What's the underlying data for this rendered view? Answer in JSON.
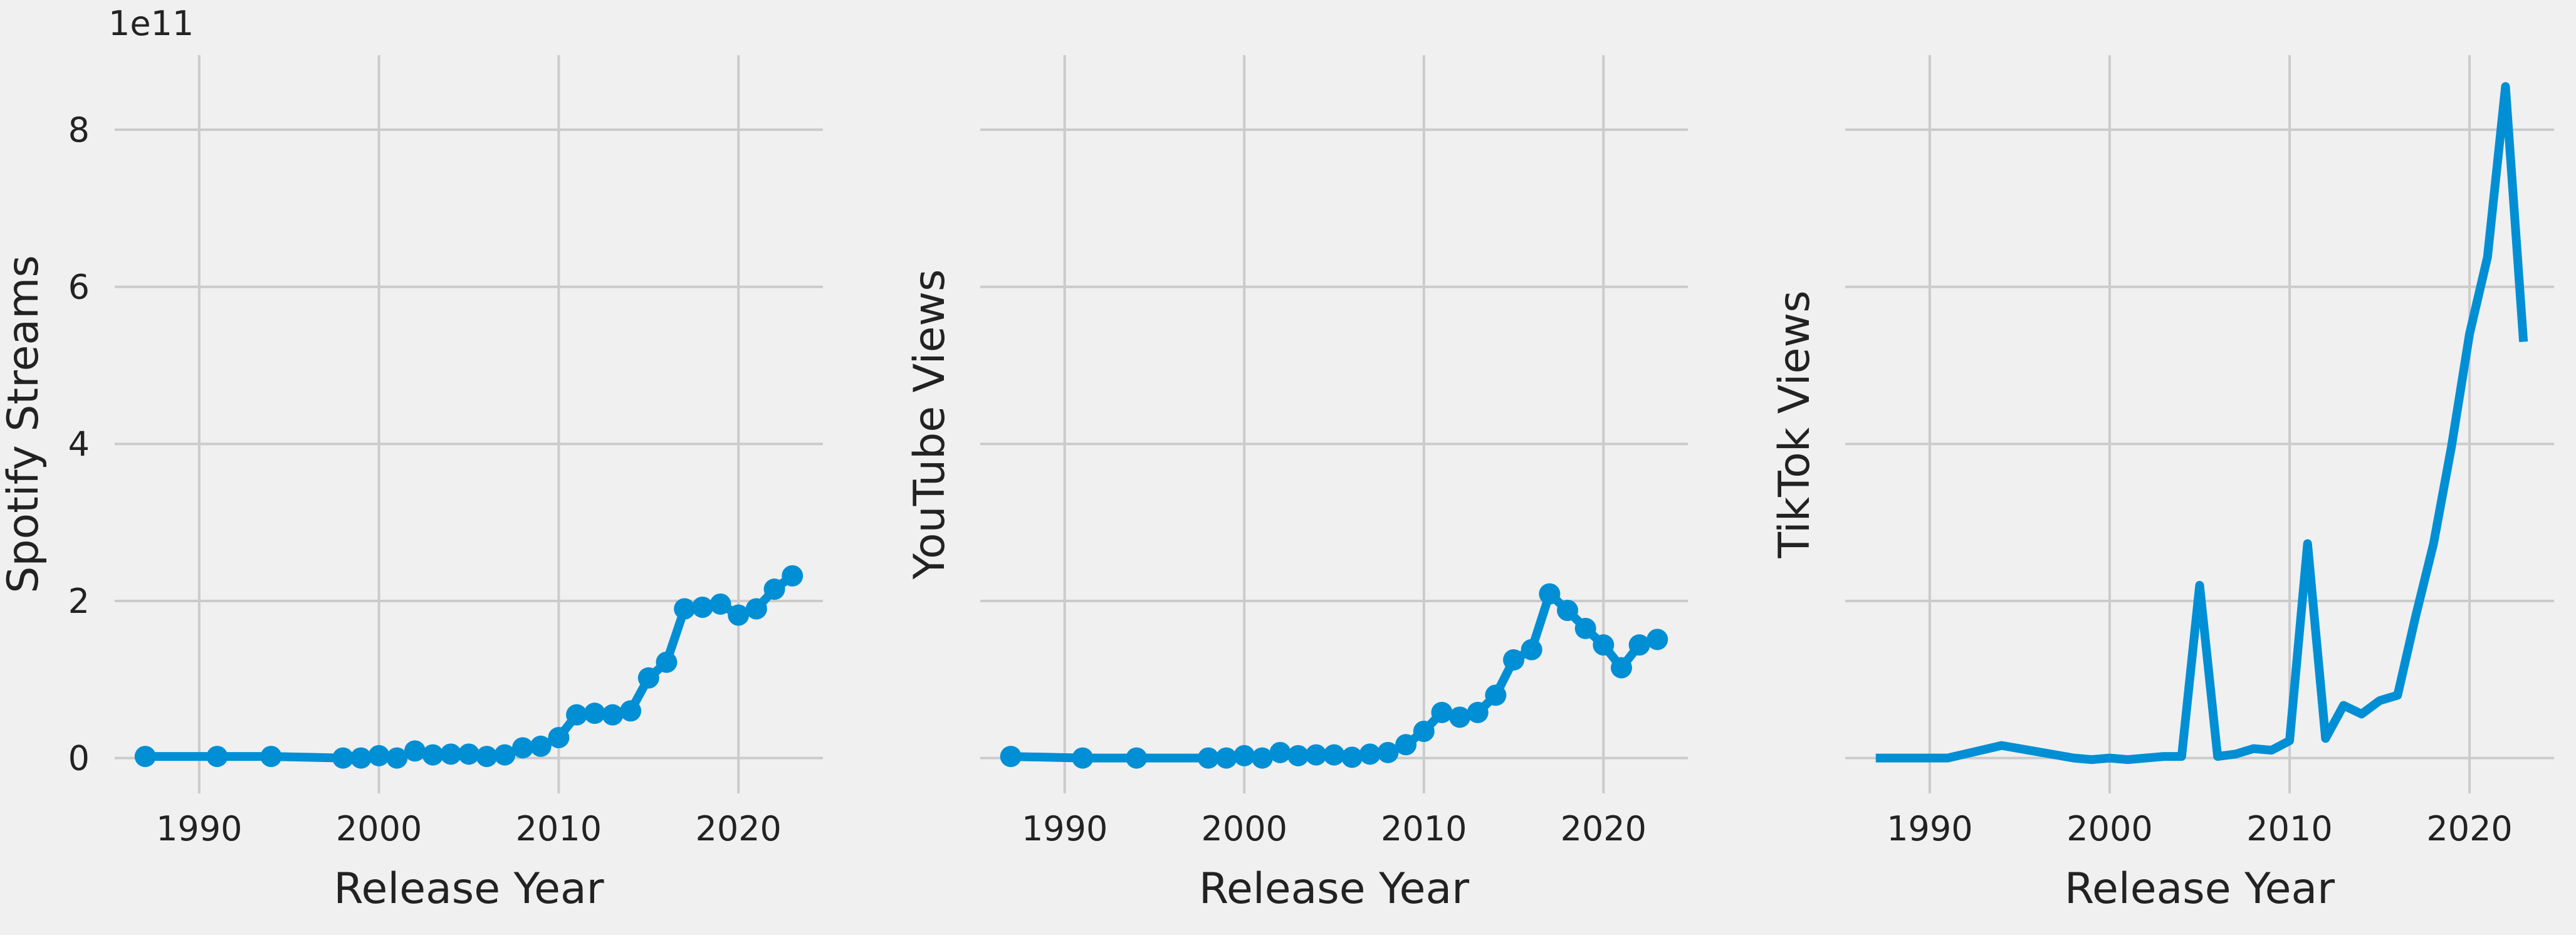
{
  "chart_data": [
    {
      "type": "line",
      "xlabel": "Release Year",
      "ylabel": "Spotify Streams",
      "y_offset_label": "1e11",
      "markers": true,
      "xlim": [
        1985.3,
        2024.7
      ],
      "ylim": [
        -0.45,
        8.95
      ],
      "xticks": [
        1990,
        2000,
        2010,
        2020
      ],
      "yticks": [
        0,
        2,
        4,
        6,
        8
      ],
      "show_yticklabels": true,
      "grid": true,
      "color": "#008fd5",
      "x": [
        1987,
        1991,
        1994,
        1998,
        1999,
        2000,
        2001,
        2002,
        2003,
        2004,
        2005,
        2006,
        2007,
        2008,
        2009,
        2010,
        2011,
        2012,
        2013,
        2014,
        2015,
        2016,
        2017,
        2018,
        2019,
        2020,
        2021,
        2022,
        2023
      ],
      "y": [
        0.02,
        0.02,
        0.02,
        0.0,
        0.0,
        0.03,
        0.0,
        0.09,
        0.04,
        0.05,
        0.05,
        0.02,
        0.04,
        0.13,
        0.15,
        0.26,
        0.55,
        0.57,
        0.55,
        0.6,
        1.02,
        1.22,
        1.9,
        1.92,
        1.96,
        1.82,
        1.9,
        2.15,
        2.32
      ]
    },
    {
      "type": "line",
      "xlabel": "Release Year",
      "ylabel": "YouTube Views",
      "markers": true,
      "xlim": [
        1985.3,
        2024.7
      ],
      "ylim": [
        -0.45,
        8.95
      ],
      "xticks": [
        1990,
        2000,
        2010,
        2020
      ],
      "yticks": [
        0,
        2,
        4,
        6,
        8
      ],
      "show_yticklabels": false,
      "grid": true,
      "color": "#008fd5",
      "x": [
        1987,
        1991,
        1994,
        1998,
        1999,
        2000,
        2001,
        2002,
        2003,
        2004,
        2005,
        2006,
        2007,
        2008,
        2009,
        2010,
        2011,
        2012,
        2013,
        2014,
        2015,
        2016,
        2017,
        2018,
        2019,
        2020,
        2021,
        2022,
        2023
      ],
      "y": [
        0.02,
        0.0,
        0.0,
        0.0,
        0.0,
        0.03,
        0.0,
        0.07,
        0.03,
        0.04,
        0.04,
        0.01,
        0.05,
        0.07,
        0.17,
        0.34,
        0.58,
        0.52,
        0.58,
        0.8,
        1.25,
        1.38,
        2.09,
        1.88,
        1.65,
        1.44,
        1.15,
        1.44,
        1.51
      ]
    },
    {
      "type": "line",
      "xlabel": "Release Year",
      "ylabel": "TikTok Views",
      "markers": false,
      "xlim": [
        1985.3,
        2024.7
      ],
      "ylim": [
        -0.45,
        8.95
      ],
      "xticks": [
        1990,
        2000,
        2010,
        2020
      ],
      "yticks": [
        0,
        2,
        4,
        6,
        8
      ],
      "show_yticklabels": false,
      "grid": true,
      "color": "#008fd5",
      "x": [
        1987,
        1991,
        1994,
        1998,
        1999,
        2000,
        2001,
        2002,
        2003,
        2004,
        2005,
        2006,
        2007,
        2008,
        2009,
        2010,
        2011,
        2012,
        2013,
        2014,
        2015,
        2016,
        2017,
        2018,
        2019,
        2020,
        2021,
        2022,
        2023
      ],
      "y": [
        0.0,
        0.0,
        0.16,
        0.0,
        -0.02,
        0.0,
        -0.02,
        0.0,
        0.02,
        0.02,
        2.2,
        0.02,
        0.05,
        0.12,
        0.1,
        0.22,
        2.73,
        0.25,
        0.67,
        0.56,
        0.73,
        0.8,
        1.8,
        2.73,
        3.97,
        5.4,
        6.38,
        8.55,
        5.3
      ]
    }
  ]
}
